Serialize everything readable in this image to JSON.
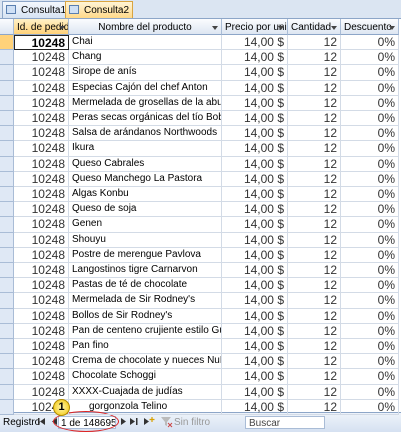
{
  "tabs": [
    "Consulta1",
    "Consulta2"
  ],
  "columns": [
    "Id. de pedido",
    "Nombre del producto",
    "Precio por unidad",
    "Cantidad",
    "Descuento"
  ],
  "rows": [
    [
      "10248",
      "Chai",
      "14,00 $",
      "12",
      "0%"
    ],
    [
      "10248",
      "Chang",
      "14,00 $",
      "12",
      "0%"
    ],
    [
      "10248",
      "Sirope de anís",
      "14,00 $",
      "12",
      "0%"
    ],
    [
      "10248",
      "Especias Cajón del chef Anton",
      "14,00 $",
      "12",
      "0%"
    ],
    [
      "10248",
      "Mermelada de grosellas de la abuela",
      "14,00 $",
      "12",
      "0%"
    ],
    [
      "10248",
      "Peras secas orgánicas del tío Bob",
      "14,00 $",
      "12",
      "0%"
    ],
    [
      "10248",
      "Salsa de arándanos Northwoods",
      "14,00 $",
      "12",
      "0%"
    ],
    [
      "10248",
      "Ikura",
      "14,00 $",
      "12",
      "0%"
    ],
    [
      "10248",
      "Queso Cabrales",
      "14,00 $",
      "12",
      "0%"
    ],
    [
      "10248",
      "Queso Manchego La Pastora",
      "14,00 $",
      "12",
      "0%"
    ],
    [
      "10248",
      "Algas Konbu",
      "14,00 $",
      "12",
      "0%"
    ],
    [
      "10248",
      "Queso de soja",
      "14,00 $",
      "12",
      "0%"
    ],
    [
      "10248",
      "Genen",
      "14,00 $",
      "12",
      "0%"
    ],
    [
      "10248",
      "Shouyu",
      "14,00 $",
      "12",
      "0%"
    ],
    [
      "10248",
      "Postre de merengue Pavlova",
      "14,00 $",
      "12",
      "0%"
    ],
    [
      "10248",
      "Langostinos tigre Carnarvon",
      "14,00 $",
      "12",
      "0%"
    ],
    [
      "10248",
      "Pastas de té de chocolate",
      "14,00 $",
      "12",
      "0%"
    ],
    [
      "10248",
      "Mermelada de Sir Rodney's",
      "14,00 $",
      "12",
      "0%"
    ],
    [
      "10248",
      "Bollos de Sir Rodney's",
      "14,00 $",
      "12",
      "0%"
    ],
    [
      "10248",
      "Pan de centeno crujiente estilo Gustaf's",
      "14,00 $",
      "12",
      "0%"
    ],
    [
      "10248",
      "Pan fino",
      "14,00 $",
      "12",
      "0%"
    ],
    [
      "10248",
      "Crema de chocolate y nueces NuNuCa",
      "14,00 $",
      "12",
      "0%"
    ],
    [
      "10248",
      "Chocolate Schoggi",
      "14,00 $",
      "12",
      "0%"
    ],
    [
      "10248",
      "XXXX-Cuajada de judías",
      "14,00 $",
      "12",
      "0%"
    ],
    [
      "10248",
      "gorgonzola Telino",
      "14,00 $",
      "12",
      "0%"
    ]
  ],
  "callout": "1",
  "navigation": {
    "label": "Registro",
    "position": "1 de 148695",
    "filter": "Sin filtro",
    "search": "Buscar"
  }
}
